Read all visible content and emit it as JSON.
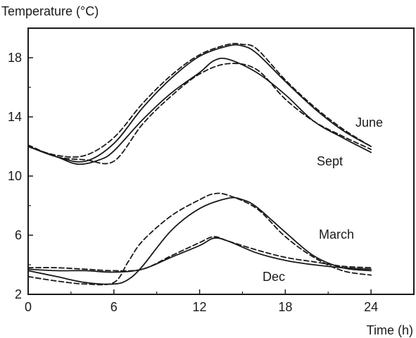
{
  "chart_data": {
    "type": "line",
    "ylabel": "Temperature (°C)",
    "xlabel": "Time (h)",
    "xlim": [
      0,
      27
    ],
    "ylim": [
      2,
      20
    ],
    "x_ticks": [
      0,
      6,
      12,
      18,
      24
    ],
    "y_ticks": [
      2,
      6,
      10,
      14,
      18
    ],
    "grid": false,
    "series": [
      {
        "name": "June",
        "style": "solid",
        "points": [
          [
            0,
            12.0
          ],
          [
            2,
            11.3
          ],
          [
            4,
            11.0
          ],
          [
            6,
            12.2
          ],
          [
            8,
            14.6
          ],
          [
            10,
            16.6
          ],
          [
            12,
            18.1
          ],
          [
            14,
            18.8
          ],
          [
            15,
            18.8
          ],
          [
            16,
            18.3
          ],
          [
            18,
            16.4
          ],
          [
            20,
            14.6
          ],
          [
            22,
            13.1
          ],
          [
            24,
            12.0
          ]
        ]
      },
      {
        "name": "June",
        "style": "dashed",
        "points": [
          [
            0,
            12.0
          ],
          [
            2,
            11.4
          ],
          [
            4,
            11.4
          ],
          [
            6,
            12.6
          ],
          [
            8,
            14.9
          ],
          [
            10,
            16.8
          ],
          [
            12,
            18.2
          ],
          [
            14,
            18.9
          ],
          [
            15,
            18.9
          ],
          [
            16,
            18.6
          ],
          [
            18,
            16.5
          ],
          [
            20,
            14.7
          ],
          [
            22,
            13.2
          ],
          [
            24,
            12.0
          ]
        ]
      },
      {
        "name": "Sept",
        "style": "solid",
        "points": [
          [
            0,
            12.0
          ],
          [
            2,
            11.3
          ],
          [
            3.5,
            10.8
          ],
          [
            5,
            11.1
          ],
          [
            6,
            11.7
          ],
          [
            8,
            13.8
          ],
          [
            10,
            15.6
          ],
          [
            12,
            17.0
          ],
          [
            13,
            17.8
          ],
          [
            14,
            17.9
          ],
          [
            16,
            17.0
          ],
          [
            18,
            15.5
          ],
          [
            20,
            13.7
          ],
          [
            22,
            12.6
          ],
          [
            24,
            11.6
          ]
        ]
      },
      {
        "name": "Sept",
        "style": "dashed",
        "points": [
          [
            0,
            12.1
          ],
          [
            2,
            11.3
          ],
          [
            4,
            11.1
          ],
          [
            6,
            11.0
          ],
          [
            8,
            13.5
          ],
          [
            10,
            15.4
          ],
          [
            12,
            16.9
          ],
          [
            14,
            17.6
          ],
          [
            16,
            17.2
          ],
          [
            18,
            15.2
          ],
          [
            20,
            13.7
          ],
          [
            22,
            12.7
          ],
          [
            24,
            11.8
          ]
        ]
      },
      {
        "name": "March",
        "style": "solid",
        "points": [
          [
            0,
            3.6
          ],
          [
            2,
            3.2
          ],
          [
            4,
            2.8
          ],
          [
            6,
            2.7
          ],
          [
            7,
            3.0
          ],
          [
            8,
            3.9
          ],
          [
            10,
            6.3
          ],
          [
            12,
            7.8
          ],
          [
            14,
            8.5
          ],
          [
            15,
            8.4
          ],
          [
            16,
            7.9
          ],
          [
            18,
            6.2
          ],
          [
            20,
            4.6
          ],
          [
            22,
            3.8
          ],
          [
            24,
            3.6
          ]
        ]
      },
      {
        "name": "March",
        "style": "dashed",
        "points": [
          [
            0,
            3.2
          ],
          [
            2,
            2.9
          ],
          [
            4,
            2.7
          ],
          [
            6,
            2.8
          ],
          [
            7,
            4.2
          ],
          [
            8,
            5.6
          ],
          [
            10,
            7.3
          ],
          [
            12,
            8.4
          ],
          [
            13,
            8.8
          ],
          [
            14,
            8.7
          ],
          [
            16,
            7.8
          ],
          [
            18,
            5.9
          ],
          [
            20,
            4.5
          ],
          [
            22,
            3.6
          ],
          [
            24,
            3.3
          ]
        ]
      },
      {
        "name": "Dec",
        "style": "solid",
        "points": [
          [
            0,
            3.7
          ],
          [
            2,
            3.6
          ],
          [
            4,
            3.6
          ],
          [
            6,
            3.5
          ],
          [
            8,
            3.7
          ],
          [
            10,
            4.5
          ],
          [
            12,
            5.3
          ],
          [
            13,
            5.8
          ],
          [
            14,
            5.6
          ],
          [
            16,
            4.8
          ],
          [
            18,
            4.3
          ],
          [
            20,
            4.0
          ],
          [
            22,
            3.8
          ],
          [
            24,
            3.7
          ]
        ]
      },
      {
        "name": "Dec",
        "style": "dashed",
        "points": [
          [
            0,
            3.8
          ],
          [
            2,
            3.8
          ],
          [
            4,
            3.7
          ],
          [
            6,
            3.6
          ],
          [
            8,
            3.7
          ],
          [
            10,
            4.6
          ],
          [
            12,
            5.5
          ],
          [
            13,
            5.9
          ],
          [
            14,
            5.6
          ],
          [
            16,
            5.0
          ],
          [
            18,
            4.5
          ],
          [
            20,
            4.2
          ],
          [
            22,
            3.9
          ],
          [
            24,
            3.8
          ]
        ]
      }
    ],
    "annotations": [
      "June",
      "Sept",
      "March",
      "Dec"
    ]
  }
}
